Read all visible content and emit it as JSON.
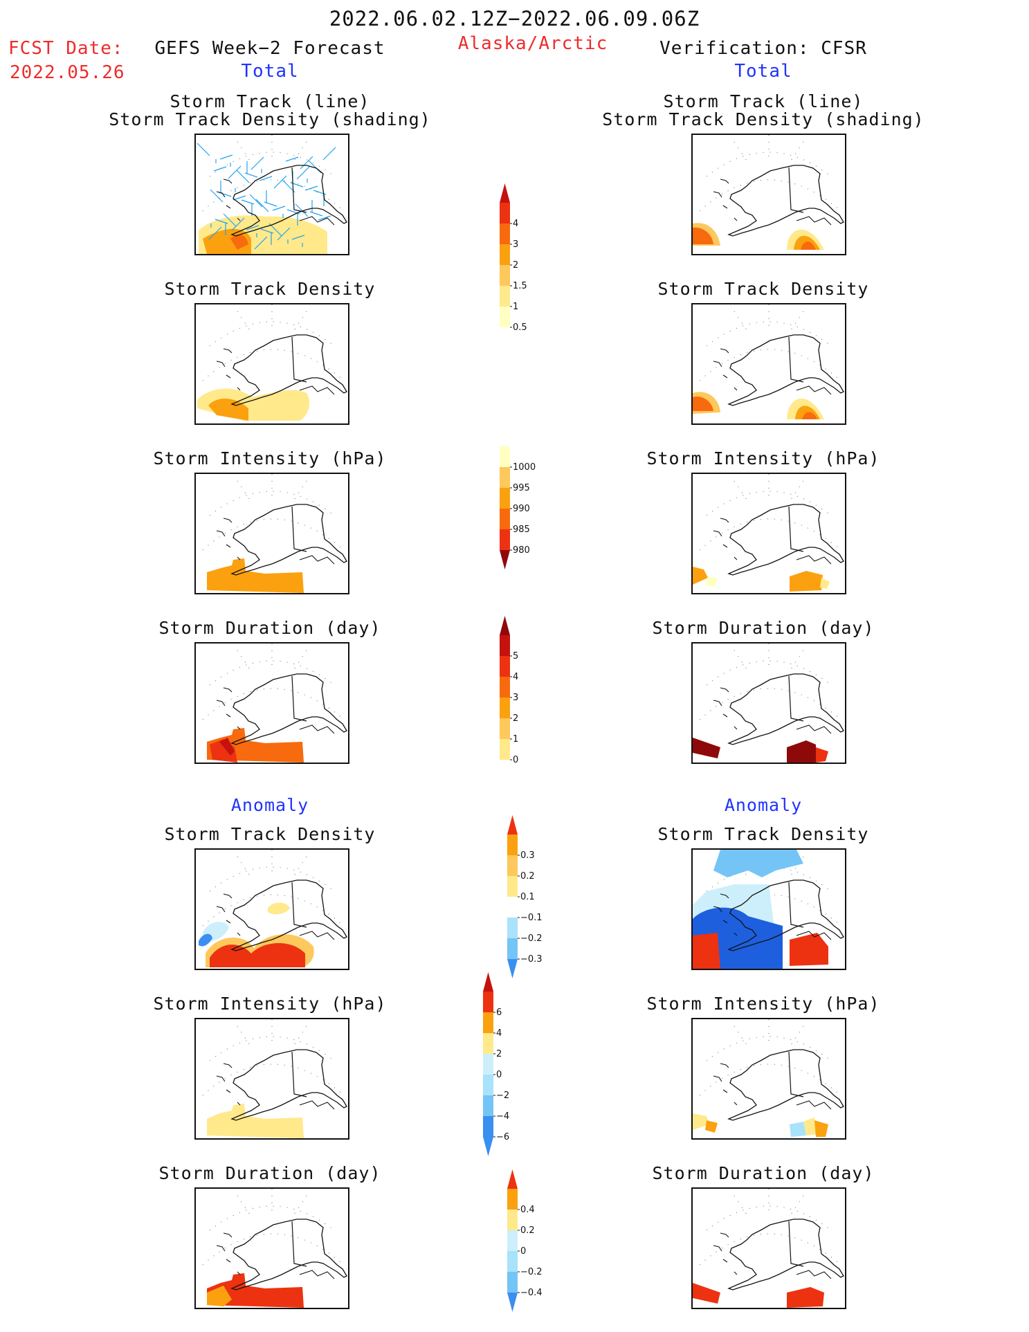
{
  "header": {
    "date_range": "2022.06.02.12Z−2022.06.09.06Z",
    "fcst_label": "FCST Date:",
    "fcst_date": "2022.05.26",
    "left_title": "GEFS Week−2 Forecast",
    "region": "Alaska/Arctic",
    "right_title": "Verification: CFSR",
    "section_total": "Total",
    "section_anomaly": "Anomaly"
  },
  "panels": {
    "track_line": "Storm Track (line)",
    "track_shading": "Storm Track Density (shading)",
    "density": "Storm Track Density",
    "intensity": "Storm Intensity (hPa)",
    "duration": "Storm Duration (day)"
  },
  "colors": {
    "c1": "#ffffc2",
    "c2": "#ffe98b",
    "c3": "#fdc85c",
    "c4": "#fba10f",
    "c5": "#f86a0e",
    "c6": "#ed3211",
    "c7": "#c6120e",
    "c8": "#8e0a0a",
    "b1": "#cdeffc",
    "b2": "#a8e2fb",
    "b3": "#75c4f6",
    "b4": "#3a8ff0",
    "b5": "#1e5fde",
    "track": "#1ea3ee"
  },
  "colorbars": [
    {
      "name": "total-density",
      "labels": [
        "4",
        "3",
        "2",
        "1.5",
        "1",
        "0.5"
      ]
    },
    {
      "name": "total-intensity",
      "labels": [
        "1000",
        "995",
        "990",
        "985",
        "980"
      ]
    },
    {
      "name": "total-duration",
      "labels": [
        "5",
        "4",
        "3",
        "2",
        "1",
        "0"
      ]
    },
    {
      "name": "anom-density",
      "labels": [
        "0.3",
        "0.2",
        "0.1",
        "−0.1",
        "−0.2",
        "−0.3"
      ]
    },
    {
      "name": "anom-intensity",
      "labels": [
        "6",
        "4",
        "2",
        "0",
        "−2",
        "−4",
        "−6"
      ]
    },
    {
      "name": "anom-duration",
      "labels": [
        "0.4",
        "0.2",
        "0",
        "−0.2",
        "−0.4"
      ]
    }
  ]
}
